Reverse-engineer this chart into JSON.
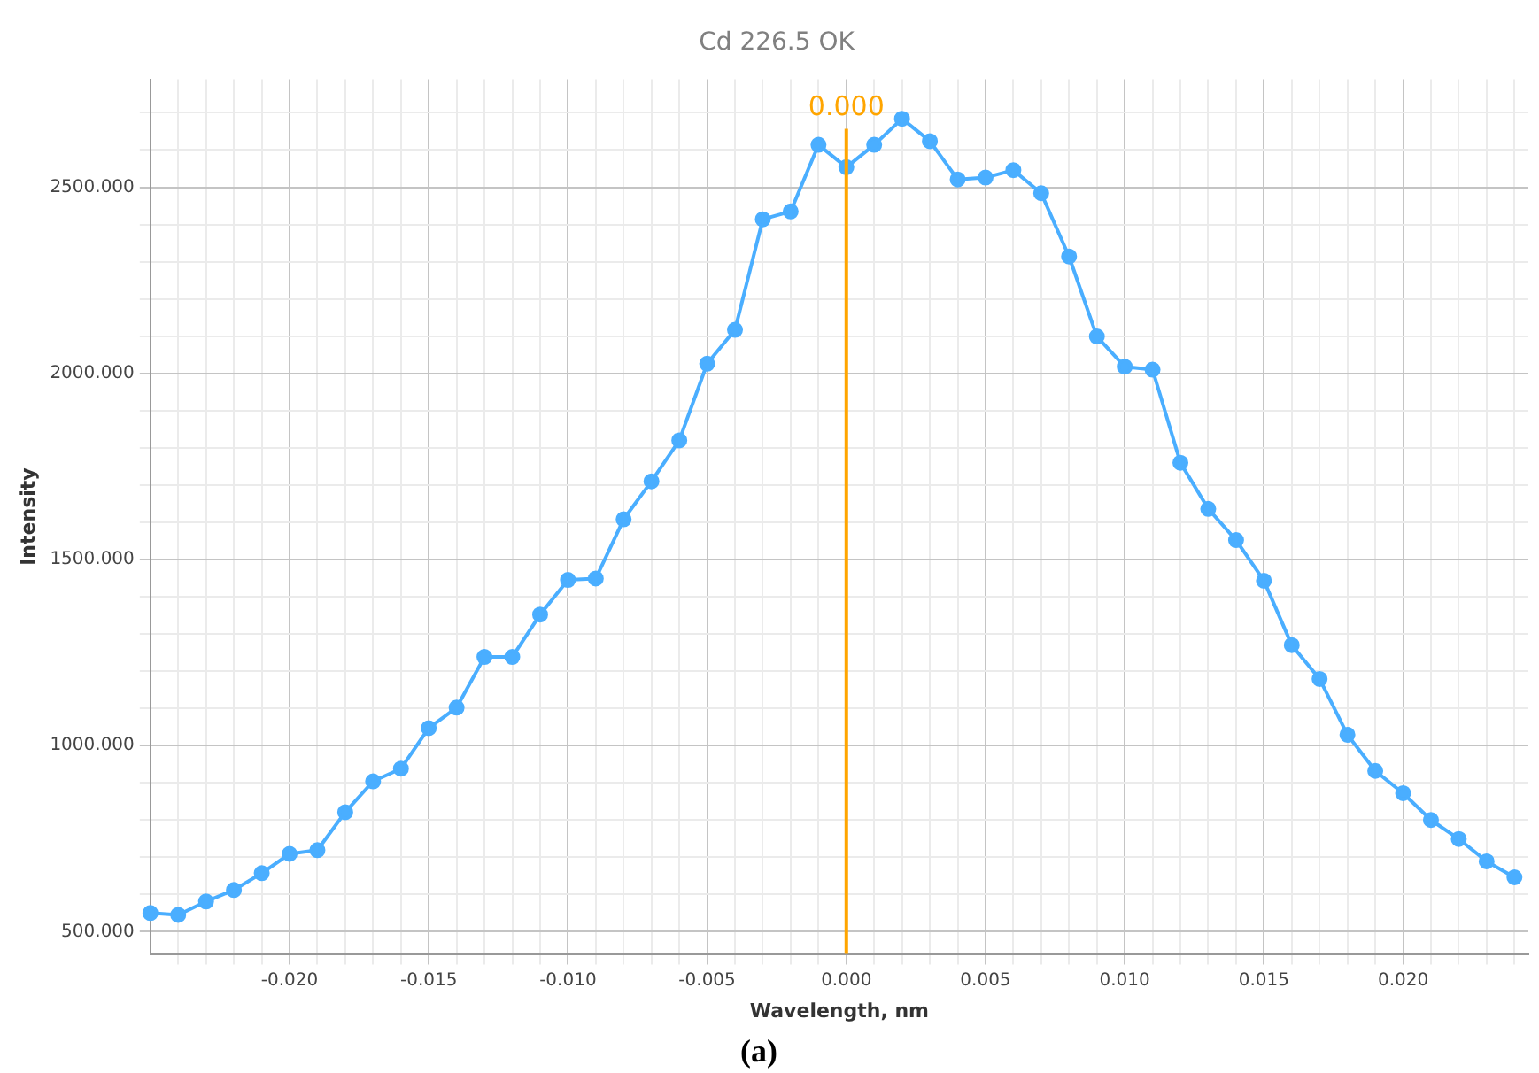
{
  "chart_data": {
    "type": "line",
    "title": "Cd 226.5 OK",
    "xlabel": "Wavelength, nm",
    "ylabel": "Intensity",
    "annotations": [
      "(a)"
    ],
    "series": [
      {
        "color": "#4aaeff",
        "x": [
          -0.025,
          -0.024,
          -0.023,
          -0.022,
          -0.021,
          -0.02,
          -0.019,
          -0.018,
          -0.017,
          -0.016,
          -0.015,
          -0.014,
          -0.013,
          -0.012,
          -0.011,
          -0.01,
          -0.009,
          -0.008,
          -0.007,
          -0.006,
          -0.005,
          -0.004,
          -0.003,
          -0.002,
          -0.001,
          0,
          0.001,
          0.002,
          0.003,
          0.004,
          0.005,
          0.006,
          0.007,
          0.008,
          0.009,
          0.01,
          0.011,
          0.012,
          0.013,
          0.014,
          0.015,
          0.016,
          0.017,
          0.018,
          0.019,
          0.02,
          0.021,
          0.022,
          0.023,
          0.024
        ],
        "values": [
          550,
          545,
          581,
          612,
          657,
          709,
          719,
          821,
          904,
          938,
          1047,
          1102,
          1238,
          1238,
          1352,
          1445,
          1449,
          1608,
          1710,
          1820,
          2026,
          2117,
          2414,
          2435,
          2614,
          2554,
          2614,
          2684,
          2624,
          2521,
          2526,
          2546,
          2484,
          2314,
          2099,
          2018,
          2010,
          1760,
          1636,
          1552,
          1443,
          1270,
          1179,
          1029,
          932,
          872,
          800,
          749,
          689,
          646
        ]
      }
    ],
    "xlim": [
      -0.025,
      0.0245
    ],
    "xticks": [
      {
        "value": -0.024,
        "label": null
      },
      {
        "value": -0.023,
        "label": null
      },
      {
        "value": -0.022,
        "label": null
      },
      {
        "value": -0.021,
        "label": null
      },
      {
        "value": -0.02,
        "label": "-0.020"
      },
      {
        "value": -0.019,
        "label": null
      },
      {
        "value": -0.018,
        "label": null
      },
      {
        "value": -0.017,
        "label": null
      },
      {
        "value": -0.016,
        "label": null
      },
      {
        "value": -0.015,
        "label": "-0.015"
      },
      {
        "value": -0.014,
        "label": null
      },
      {
        "value": -0.013,
        "label": null
      },
      {
        "value": -0.012,
        "label": null
      },
      {
        "value": -0.011,
        "label": null
      },
      {
        "value": -0.01,
        "label": "-0.010"
      },
      {
        "value": -0.009,
        "label": null
      },
      {
        "value": -0.008,
        "label": null
      },
      {
        "value": -0.007,
        "label": null
      },
      {
        "value": -0.006,
        "label": null
      },
      {
        "value": -0.005,
        "label": "-0.005"
      },
      {
        "value": -0.004,
        "label": null
      },
      {
        "value": -0.003,
        "label": null
      },
      {
        "value": -0.002,
        "label": null
      },
      {
        "value": -0.001,
        "label": null
      },
      {
        "value": 0,
        "label": "0.000"
      },
      {
        "value": 0.001,
        "label": null
      },
      {
        "value": 0.002,
        "label": null
      },
      {
        "value": 0.003,
        "label": null
      },
      {
        "value": 0.004,
        "label": null
      },
      {
        "value": 0.005,
        "label": "0.005"
      },
      {
        "value": 0.006,
        "label": null
      },
      {
        "value": 0.007,
        "label": null
      },
      {
        "value": 0.008,
        "label": null
      },
      {
        "value": 0.009,
        "label": null
      },
      {
        "value": 0.01,
        "label": "0.010"
      },
      {
        "value": 0.011,
        "label": null
      },
      {
        "value": 0.012,
        "label": null
      },
      {
        "value": 0.013,
        "label": null
      },
      {
        "value": 0.014,
        "label": null
      },
      {
        "value": 0.015,
        "label": "0.015"
      },
      {
        "value": 0.016,
        "label": null
      },
      {
        "value": 0.017,
        "label": null
      },
      {
        "value": 0.018,
        "label": null
      },
      {
        "value": 0.019,
        "label": null
      },
      {
        "value": 0.02,
        "label": "0.020"
      },
      {
        "value": 0.021,
        "label": null
      },
      {
        "value": 0.022,
        "label": null
      },
      {
        "value": 0.023,
        "label": null
      },
      {
        "value": 0.024,
        "label": null
      }
    ],
    "ylim": [
      440,
      2790
    ],
    "yticks": [
      {
        "value": 500,
        "label": "500.000"
      },
      {
        "value": 600,
        "label": null
      },
      {
        "value": 700,
        "label": null
      },
      {
        "value": 800,
        "label": null
      },
      {
        "value": 900,
        "label": null
      },
      {
        "value": 1000,
        "label": "1000.000"
      },
      {
        "value": 1100,
        "label": null
      },
      {
        "value": 1200,
        "label": null
      },
      {
        "value": 1300,
        "label": null
      },
      {
        "value": 1400,
        "label": null
      },
      {
        "value": 1500,
        "label": "1500.000"
      },
      {
        "value": 1600,
        "label": null
      },
      {
        "value": 1700,
        "label": null
      },
      {
        "value": 1800,
        "label": null
      },
      {
        "value": 1900,
        "label": null
      },
      {
        "value": 2000,
        "label": "2000.000"
      },
      {
        "value": 2100,
        "label": null
      },
      {
        "value": 2200,
        "label": null
      },
      {
        "value": 2300,
        "label": null
      },
      {
        "value": 2400,
        "label": null
      },
      {
        "value": 2500,
        "label": "2500.000"
      },
      {
        "value": 2600,
        "label": null
      },
      {
        "value": 2700,
        "label": null
      }
    ],
    "ref_lines": [
      {
        "axis": "x",
        "value": 0,
        "label": "0.000",
        "color": "#ffa500"
      }
    ],
    "grid": true,
    "legend": false,
    "marker": "circle",
    "line_style": "solid"
  }
}
